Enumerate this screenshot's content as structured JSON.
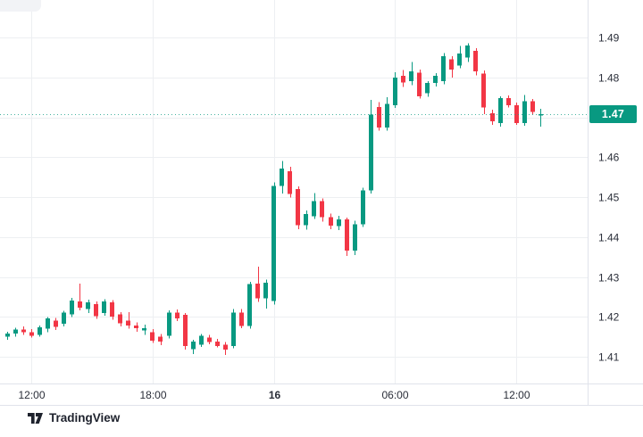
{
  "branding": {
    "logo_text": "TradingView"
  },
  "chart_data": {
    "type": "candlestick",
    "title": "",
    "legend_position": "none",
    "grid": true,
    "last_price": {
      "label": "1.47",
      "value": 1.4708
    },
    "y_axis": {
      "side": "right",
      "min": 1.41,
      "max": 1.49,
      "tick_step": 0.01,
      "tick_labels": [
        "1.49",
        "1.48",
        "1.47",
        "1.46",
        "1.45",
        "1.44",
        "1.43",
        "1.42",
        "1.41"
      ]
    },
    "x_axis": {
      "tick_labels": [
        {
          "text": "12:00",
          "candle_index": 3,
          "bold": false
        },
        {
          "text": "18:00",
          "candle_index": 18,
          "bold": false
        },
        {
          "text": "16",
          "candle_index": 33,
          "bold": true
        },
        {
          "text": "06:00",
          "candle_index": 48,
          "bold": false
        },
        {
          "text": "12:00",
          "candle_index": 63,
          "bold": false
        }
      ]
    },
    "colors": {
      "up": "#089981",
      "down": "#f23645",
      "grid": "#edeff2",
      "axis_border": "#e0e3eb",
      "label": "#2a2e39",
      "price_line": "#089981",
      "badge_bg": "#089981",
      "badge_text": "#ffffff"
    },
    "candles": {
      "format": "[open, high, low, close]",
      "ohlc": [
        [
          1.415,
          1.4163,
          1.4143,
          1.4158
        ],
        [
          1.4158,
          1.4173,
          1.415,
          1.4168
        ],
        [
          1.4168,
          1.4176,
          1.4155,
          1.4161
        ],
        [
          1.4161,
          1.4169,
          1.4148,
          1.4153
        ],
        [
          1.4155,
          1.4178,
          1.415,
          1.4174
        ],
        [
          1.417,
          1.42,
          1.4162,
          1.4196
        ],
        [
          1.419,
          1.4197,
          1.4167,
          1.4175
        ],
        [
          1.4183,
          1.4215,
          1.4176,
          1.4211
        ],
        [
          1.4206,
          1.4248,
          1.4199,
          1.4241
        ],
        [
          1.4239,
          1.4283,
          1.4216,
          1.4223
        ],
        [
          1.422,
          1.4243,
          1.421,
          1.4236
        ],
        [
          1.4232,
          1.4239,
          1.4195,
          1.4202
        ],
        [
          1.421,
          1.4244,
          1.4203,
          1.4239
        ],
        [
          1.4236,
          1.4242,
          1.4193,
          1.4201
        ],
        [
          1.4206,
          1.4212,
          1.4176,
          1.4184
        ],
        [
          1.419,
          1.4212,
          1.417,
          1.4178
        ],
        [
          1.4178,
          1.4186,
          1.4163,
          1.4171
        ],
        [
          1.4166,
          1.418,
          1.4155,
          1.4172
        ],
        [
          1.4161,
          1.4169,
          1.4135,
          1.414
        ],
        [
          1.415,
          1.4157,
          1.4129,
          1.4138
        ],
        [
          1.4152,
          1.4216,
          1.4146,
          1.4211
        ],
        [
          1.4211,
          1.4218,
          1.4189,
          1.4196
        ],
        [
          1.4205,
          1.421,
          1.4118,
          1.4127
        ],
        [
          1.4119,
          1.4143,
          1.4107,
          1.4138
        ],
        [
          1.413,
          1.4157,
          1.4125,
          1.4152
        ],
        [
          1.4148,
          1.4155,
          1.4131,
          1.4137
        ],
        [
          1.4138,
          1.4145,
          1.4123,
          1.4127
        ],
        [
          1.413,
          1.4137,
          1.4105,
          1.4118
        ],
        [
          1.4127,
          1.4219,
          1.4121,
          1.4211
        ],
        [
          1.4211,
          1.422,
          1.4171,
          1.4177
        ],
        [
          1.4177,
          1.4288,
          1.417,
          1.4282
        ],
        [
          1.4283,
          1.4326,
          1.4237,
          1.4246
        ],
        [
          1.4246,
          1.4293,
          1.4221,
          1.4286
        ],
        [
          1.424,
          1.4537,
          1.4231,
          1.4528
        ],
        [
          1.4528,
          1.459,
          1.4509,
          1.4572
        ],
        [
          1.4565,
          1.4576,
          1.4499,
          1.4508
        ],
        [
          1.452,
          1.4527,
          1.4419,
          1.443
        ],
        [
          1.443,
          1.4467,
          1.4418,
          1.4458
        ],
        [
          1.4452,
          1.451,
          1.4445,
          1.449
        ],
        [
          1.449,
          1.4497,
          1.4438,
          1.445
        ],
        [
          1.445,
          1.4459,
          1.4419,
          1.4428
        ],
        [
          1.4428,
          1.4453,
          1.4417,
          1.4444
        ],
        [
          1.4444,
          1.4449,
          1.4352,
          1.4366
        ],
        [
          1.4366,
          1.4441,
          1.4355,
          1.4432
        ],
        [
          1.4432,
          1.4523,
          1.4425,
          1.4517
        ],
        [
          1.4517,
          1.4744,
          1.4509,
          1.4707
        ],
        [
          1.4726,
          1.4738,
          1.4667,
          1.4674
        ],
        [
          1.4674,
          1.475,
          1.4667,
          1.4733
        ],
        [
          1.473,
          1.4813,
          1.4723,
          1.48
        ],
        [
          1.4804,
          1.4818,
          1.4776,
          1.4787
        ],
        [
          1.479,
          1.4838,
          1.4781,
          1.4815
        ],
        [
          1.4812,
          1.482,
          1.4747,
          1.4753
        ],
        [
          1.476,
          1.4791,
          1.4751,
          1.4786
        ],
        [
          1.4786,
          1.4811,
          1.4777,
          1.4804
        ],
        [
          1.479,
          1.4861,
          1.4783,
          1.4853
        ],
        [
          1.4845,
          1.4853,
          1.4799,
          1.482
        ],
        [
          1.483,
          1.4879,
          1.4823,
          1.486
        ],
        [
          1.485,
          1.4886,
          1.4839,
          1.488
        ],
        [
          1.4867,
          1.4873,
          1.4805,
          1.4815
        ],
        [
          1.481,
          1.4817,
          1.4708,
          1.4725
        ],
        [
          1.471,
          1.4719,
          1.4681,
          1.469
        ],
        [
          1.4685,
          1.4753,
          1.4677,
          1.4748
        ],
        [
          1.4748,
          1.4755,
          1.4725,
          1.473
        ],
        [
          1.473,
          1.4737,
          1.4681,
          1.4686
        ],
        [
          1.4686,
          1.4756,
          1.4679,
          1.474
        ],
        [
          1.474,
          1.4746,
          1.4707,
          1.4713
        ],
        [
          1.4706,
          1.4721,
          1.4677,
          1.4708
        ]
      ]
    }
  }
}
